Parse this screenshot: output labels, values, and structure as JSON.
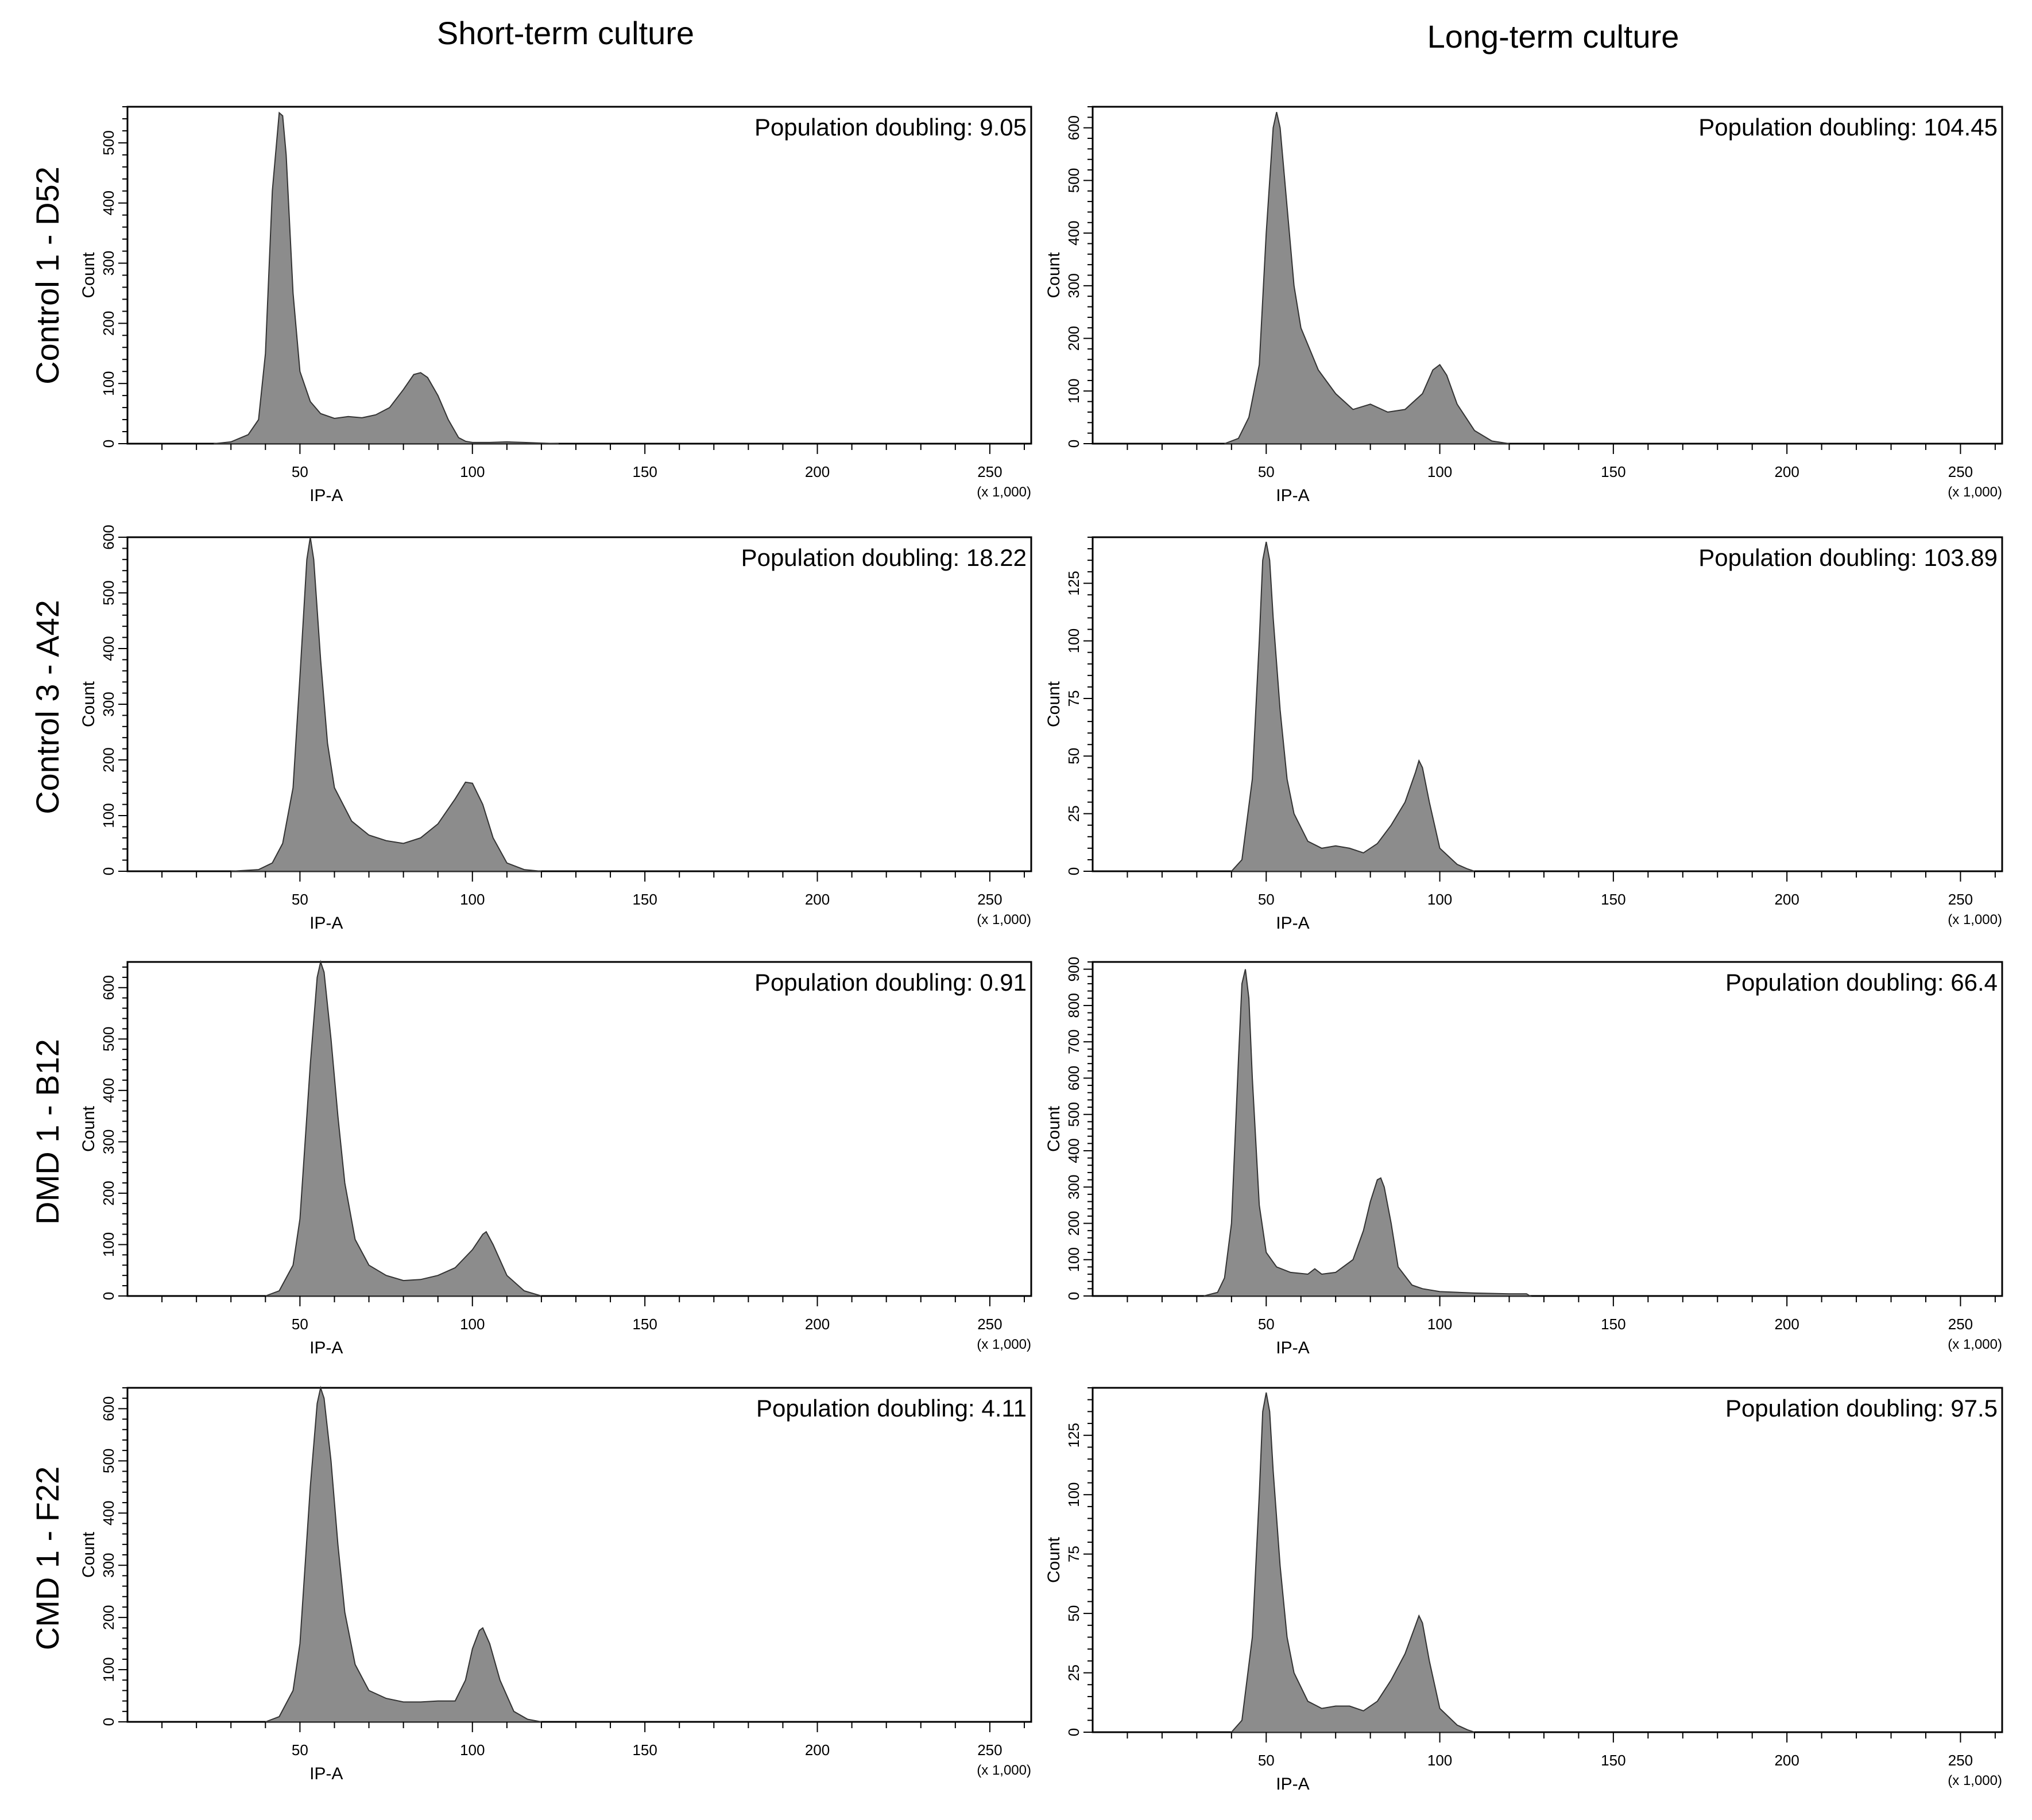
{
  "figure": {
    "column_titles": [
      "Short-term culture",
      "Long-term culture"
    ],
    "row_labels": [
      "Control 1 - D52",
      "Control 3 - A42",
      "DMD 1 - B12",
      "CMD 1 - F22"
    ]
  },
  "chart_data": [
    {
      "type": "area",
      "row": "Control 1 - D52",
      "column": "Short-term culture",
      "annotation": "Population doubling: 9.05",
      "xlabel": "IP-A",
      "ylabel": "Count",
      "x_multiplier": "(x 1,000)",
      "xlim": [
        0,
        262
      ],
      "ylim": [
        0,
        560
      ],
      "xticks": [
        50,
        100,
        150,
        200,
        250
      ],
      "yticks": [
        0,
        100,
        200,
        300,
        400,
        500
      ],
      "x": [
        25,
        30,
        35,
        38,
        40,
        42,
        44,
        45,
        46,
        48,
        50,
        53,
        56,
        60,
        64,
        68,
        72,
        76,
        80,
        83,
        85,
        87,
        90,
        93,
        96,
        98,
        100,
        105,
        110,
        115,
        120,
        125
      ],
      "y": [
        0,
        3,
        15,
        40,
        150,
        420,
        550,
        545,
        480,
        250,
        120,
        70,
        50,
        42,
        45,
        43,
        48,
        60,
        90,
        115,
        118,
        110,
        80,
        40,
        10,
        4,
        2,
        2,
        3,
        2,
        1,
        0
      ]
    },
    {
      "type": "area",
      "row": "Control 1 - D52",
      "column": "Long-term culture",
      "annotation": "Population doubling: 104.45",
      "xlabel": "IP-A",
      "ylabel": "Count",
      "x_multiplier": "(x 1,000)",
      "xlim": [
        0,
        262
      ],
      "ylim": [
        0,
        640
      ],
      "xticks": [
        50,
        100,
        150,
        200,
        250
      ],
      "yticks": [
        0,
        100,
        200,
        300,
        400,
        500,
        600
      ],
      "x": [
        38,
        42,
        45,
        48,
        50,
        52,
        53,
        54,
        56,
        58,
        60,
        65,
        70,
        75,
        80,
        85,
        90,
        95,
        98,
        100,
        102,
        105,
        110,
        115,
        120
      ],
      "y": [
        0,
        10,
        50,
        150,
        400,
        600,
        630,
        600,
        450,
        300,
        220,
        140,
        95,
        65,
        75,
        60,
        65,
        95,
        140,
        150,
        130,
        75,
        25,
        5,
        0
      ]
    },
    {
      "type": "area",
      "row": "Control 3 - A42",
      "column": "Short-term culture",
      "annotation": "Population doubling: 18.22",
      "xlabel": "IP-A",
      "ylabel": "Count",
      "x_multiplier": "(x 1,000)",
      "xlim": [
        0,
        262
      ],
      "ylim": [
        0,
        600
      ],
      "xticks": [
        50,
        100,
        150,
        200,
        250
      ],
      "yticks": [
        0,
        100,
        200,
        300,
        400,
        500,
        600
      ],
      "x": [
        30,
        38,
        42,
        45,
        48,
        50,
        52,
        53,
        54,
        56,
        58,
        60,
        65,
        70,
        75,
        80,
        85,
        90,
        95,
        98,
        100,
        103,
        106,
        110,
        115,
        120
      ],
      "y": [
        0,
        3,
        15,
        50,
        150,
        350,
        560,
        600,
        560,
        380,
        230,
        150,
        90,
        65,
        55,
        50,
        60,
        85,
        130,
        160,
        158,
        120,
        60,
        15,
        3,
        0
      ]
    },
    {
      "type": "area",
      "row": "Control 3 - A42",
      "column": "Long-term culture",
      "annotation": "Population doubling: 103.89",
      "xlabel": "IP-A",
      "ylabel": "Count",
      "x_multiplier": "(x 1,000)",
      "xlim": [
        0,
        262
      ],
      "ylim": [
        0,
        145
      ],
      "xticks": [
        50,
        100,
        150,
        200,
        250
      ],
      "yticks": [
        0,
        25,
        50,
        75,
        100,
        125
      ],
      "x": [
        40,
        43,
        46,
        48,
        49,
        50,
        51,
        52,
        54,
        56,
        58,
        62,
        66,
        70,
        74,
        78,
        82,
        86,
        90,
        93,
        94,
        95,
        97,
        100,
        105,
        108,
        110
      ],
      "y": [
        0,
        5,
        40,
        100,
        135,
        143,
        135,
        110,
        70,
        40,
        25,
        13,
        10,
        11,
        10,
        8,
        12,
        20,
        30,
        43,
        48,
        45,
        30,
        10,
        3,
        1,
        0
      ]
    },
    {
      "type": "area",
      "row": "DMD 1 - B12",
      "column": "Short-term culture",
      "annotation": "Population doubling: 0.91",
      "xlabel": "IP-A",
      "ylabel": "Count",
      "x_multiplier": "(x 1,000)",
      "xlim": [
        0,
        262
      ],
      "ylim": [
        0,
        650
      ],
      "xticks": [
        50,
        100,
        150,
        200,
        250
      ],
      "yticks": [
        0,
        100,
        200,
        300,
        400,
        500,
        600
      ],
      "x": [
        40,
        44,
        48,
        50,
        53,
        55,
        56,
        57,
        59,
        61,
        63,
        66,
        70,
        75,
        80,
        85,
        90,
        95,
        100,
        103,
        104,
        106,
        110,
        115,
        120
      ],
      "y": [
        0,
        10,
        60,
        150,
        450,
        620,
        650,
        630,
        500,
        350,
        220,
        110,
        60,
        40,
        30,
        32,
        40,
        55,
        90,
        120,
        125,
        100,
        40,
        10,
        0
      ]
    },
    {
      "type": "area",
      "row": "DMD 1 - B12",
      "column": "Long-term culture",
      "annotation": "Population doubling: 66.4",
      "xlabel": "IP-A",
      "ylabel": "Count",
      "x_multiplier": "(x 1,000)",
      "xlim": [
        0,
        262
      ],
      "ylim": [
        0,
        920
      ],
      "xticks": [
        50,
        100,
        150,
        200,
        250
      ],
      "yticks": [
        0,
        100,
        200,
        300,
        400,
        500,
        600,
        700,
        800,
        900
      ],
      "x": [
        32,
        36,
        38,
        40,
        42,
        43,
        44,
        45,
        46,
        48,
        50,
        53,
        57,
        62,
        64,
        66,
        70,
        75,
        78,
        80,
        82,
        83,
        84,
        86,
        88,
        92,
        95,
        100,
        110,
        120,
        125,
        126
      ],
      "y": [
        0,
        10,
        50,
        200,
        650,
        860,
        900,
        820,
        600,
        250,
        120,
        80,
        65,
        60,
        75,
        60,
        65,
        100,
        180,
        260,
        320,
        325,
        300,
        200,
        80,
        30,
        20,
        12,
        8,
        6,
        6,
        0
      ]
    },
    {
      "type": "area",
      "row": "CMD 1 - F22",
      "column": "Short-term culture",
      "annotation": "Population doubling: 4.11",
      "xlabel": "IP-A",
      "ylabel": "Count",
      "x_multiplier": "(x 1,000)",
      "xlim": [
        0,
        262
      ],
      "ylim": [
        0,
        640
      ],
      "xticks": [
        50,
        100,
        150,
        200,
        250
      ],
      "yticks": [
        0,
        100,
        200,
        300,
        400,
        500,
        600
      ],
      "x": [
        40,
        44,
        48,
        50,
        53,
        55,
        56,
        57,
        59,
        61,
        63,
        66,
        70,
        75,
        80,
        85,
        90,
        95,
        98,
        100,
        102,
        103,
        105,
        108,
        112,
        116,
        120
      ],
      "y": [
        0,
        10,
        60,
        150,
        450,
        610,
        640,
        620,
        500,
        340,
        210,
        110,
        60,
        45,
        38,
        38,
        40,
        40,
        80,
        140,
        175,
        180,
        150,
        80,
        20,
        5,
        0
      ]
    },
    {
      "type": "area",
      "row": "CMD 1 - F22",
      "column": "Long-term culture",
      "annotation": "Population doubling: 97.5",
      "xlabel": "IP-A",
      "ylabel": "Count",
      "x_multiplier": "(x 1,000)",
      "xlim": [
        0,
        262
      ],
      "ylim": [
        0,
        145
      ],
      "xticks": [
        50,
        100,
        150,
        200,
        250
      ],
      "yticks": [
        0,
        25,
        50,
        75,
        100,
        125
      ],
      "x": [
        40,
        43,
        46,
        48,
        49,
        50,
        51,
        52,
        54,
        56,
        58,
        62,
        66,
        70,
        74,
        78,
        82,
        86,
        90,
        93,
        94,
        95,
        97,
        100,
        105,
        108,
        110
      ],
      "y": [
        0,
        5,
        40,
        100,
        135,
        143,
        135,
        110,
        70,
        40,
        25,
        13,
        10,
        11,
        11,
        9,
        13,
        22,
        33,
        45,
        49,
        46,
        30,
        10,
        3,
        1,
        0
      ]
    }
  ]
}
